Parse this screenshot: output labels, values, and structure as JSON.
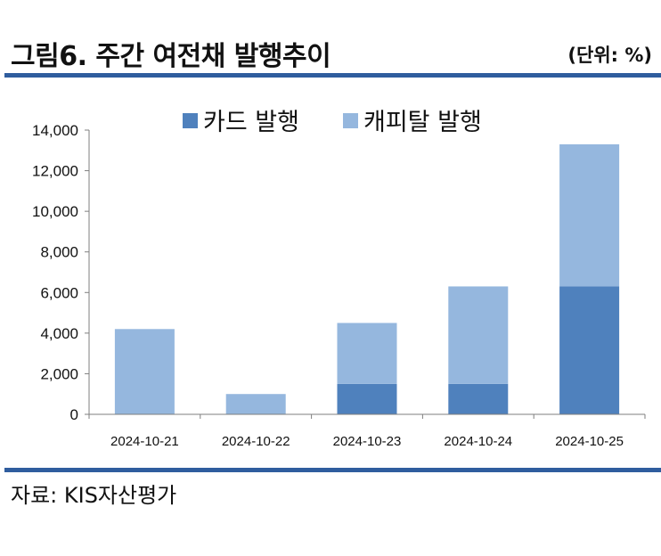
{
  "header": {
    "title": "그림6. 주간 여전채 발행추이",
    "unit": "(단위: %)"
  },
  "footer": {
    "source": "자료: KIS자산평가"
  },
  "colors": {
    "card": "#4f81bd",
    "capital": "#95b7de",
    "rule": "#2f5d9e"
  },
  "chart_data": {
    "type": "bar",
    "stacked": true,
    "categories": [
      "2024-10-21",
      "2024-10-22",
      "2024-10-23",
      "2024-10-24",
      "2024-10-25"
    ],
    "series": [
      {
        "name": "카드 발행",
        "values": [
          0,
          0,
          1500,
          1500,
          6300
        ]
      },
      {
        "name": "캐피탈 발행",
        "values": [
          4200,
          1000,
          3000,
          4800,
          7000
        ]
      }
    ],
    "ylim": [
      0,
      14000
    ],
    "yticks": [
      0,
      2000,
      4000,
      6000,
      8000,
      10000,
      12000,
      14000
    ],
    "ytick_labels": [
      "0",
      "2,000",
      "4,000",
      "6,000",
      "8,000",
      "10,000",
      "12,000",
      "14,000"
    ],
    "legend_position": "top-center",
    "grid": false
  }
}
